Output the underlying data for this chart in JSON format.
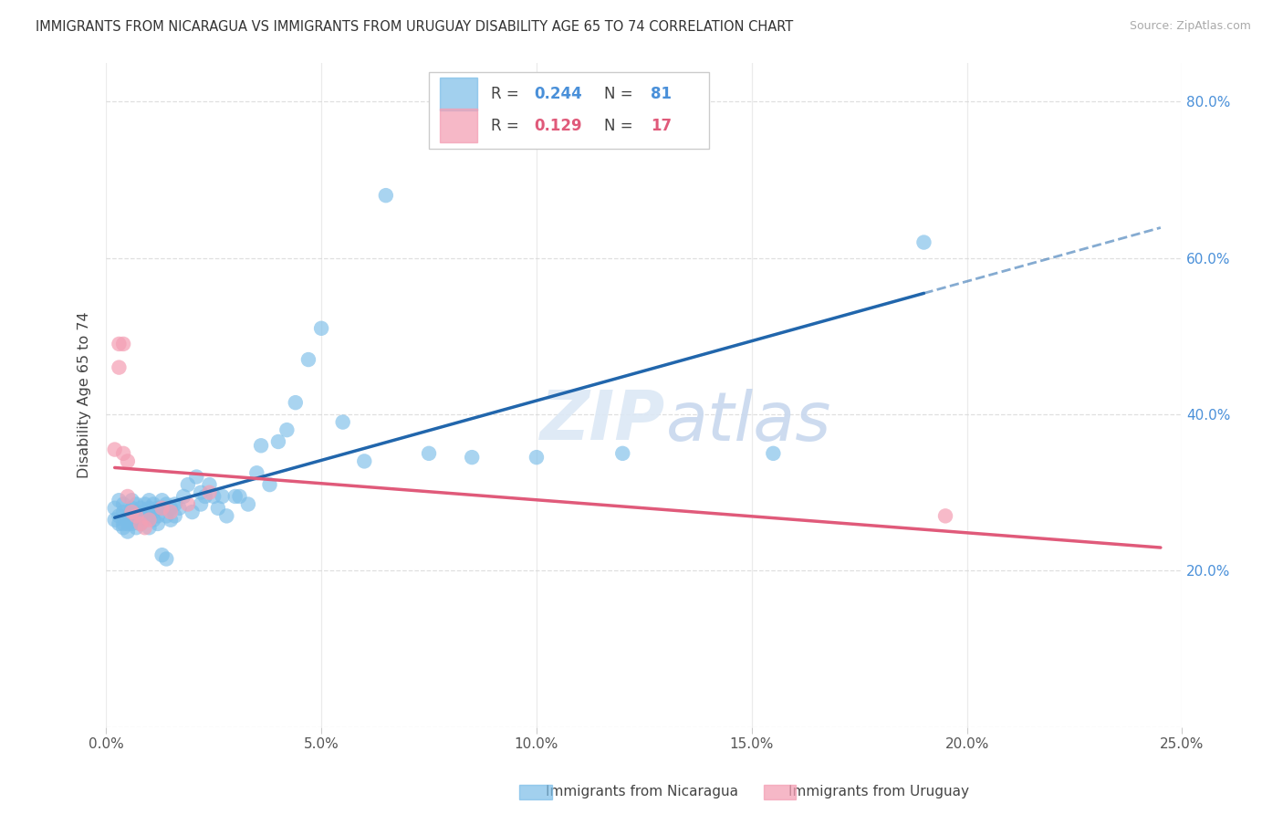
{
  "title": "IMMIGRANTS FROM NICARAGUA VS IMMIGRANTS FROM URUGUAY DISABILITY AGE 65 TO 74 CORRELATION CHART",
  "source": "Source: ZipAtlas.com",
  "ylabel": "Disability Age 65 to 74",
  "xlim": [
    0.0,
    0.25
  ],
  "ylim": [
    0.0,
    0.85
  ],
  "xticks": [
    0.0,
    0.05,
    0.1,
    0.15,
    0.2,
    0.25
  ],
  "xtick_labels": [
    "0.0%",
    "5.0%",
    "10.0%",
    "15.0%",
    "20.0%",
    "25.0%"
  ],
  "yticks": [
    0.0,
    0.2,
    0.4,
    0.6,
    0.8
  ],
  "ytick_labels": [
    "",
    "20.0%",
    "40.0%",
    "60.0%",
    "80.0%"
  ],
  "nicaragua_color": "#7bbde8",
  "uruguay_color": "#f4a0b5",
  "line_nicaragua_color": "#2166ac",
  "line_uruguay_color": "#e05a7a",
  "R_nicaragua": 0.244,
  "N_nicaragua": 81,
  "R_uruguay": 0.129,
  "N_uruguay": 17,
  "background_color": "#ffffff",
  "grid_color": "#d8d8d8",
  "watermark": "ZIPatlas",
  "nicaragua_x": [
    0.002,
    0.002,
    0.003,
    0.003,
    0.003,
    0.004,
    0.004,
    0.004,
    0.004,
    0.005,
    0.005,
    0.005,
    0.005,
    0.005,
    0.006,
    0.006,
    0.006,
    0.006,
    0.007,
    0.007,
    0.007,
    0.007,
    0.008,
    0.008,
    0.008,
    0.009,
    0.009,
    0.009,
    0.01,
    0.01,
    0.01,
    0.01,
    0.011,
    0.011,
    0.011,
    0.012,
    0.012,
    0.012,
    0.013,
    0.013,
    0.013,
    0.014,
    0.014,
    0.014,
    0.015,
    0.015,
    0.016,
    0.016,
    0.017,
    0.018,
    0.019,
    0.02,
    0.021,
    0.022,
    0.022,
    0.023,
    0.024,
    0.025,
    0.026,
    0.027,
    0.028,
    0.03,
    0.031,
    0.033,
    0.035,
    0.036,
    0.038,
    0.04,
    0.042,
    0.044,
    0.047,
    0.05,
    0.055,
    0.06,
    0.065,
    0.075,
    0.085,
    0.1,
    0.12,
    0.155,
    0.19
  ],
  "nicaragua_y": [
    0.28,
    0.265,
    0.29,
    0.27,
    0.26,
    0.275,
    0.26,
    0.285,
    0.255,
    0.275,
    0.265,
    0.27,
    0.26,
    0.25,
    0.29,
    0.28,
    0.27,
    0.26,
    0.285,
    0.275,
    0.265,
    0.255,
    0.28,
    0.27,
    0.26,
    0.285,
    0.275,
    0.265,
    0.29,
    0.28,
    0.27,
    0.255,
    0.285,
    0.275,
    0.265,
    0.28,
    0.27,
    0.26,
    0.29,
    0.28,
    0.22,
    0.285,
    0.27,
    0.215,
    0.28,
    0.265,
    0.285,
    0.27,
    0.28,
    0.295,
    0.31,
    0.275,
    0.32,
    0.3,
    0.285,
    0.295,
    0.31,
    0.295,
    0.28,
    0.295,
    0.27,
    0.295,
    0.295,
    0.285,
    0.325,
    0.36,
    0.31,
    0.365,
    0.38,
    0.415,
    0.47,
    0.51,
    0.39,
    0.34,
    0.68,
    0.35,
    0.345,
    0.345,
    0.35,
    0.35,
    0.62
  ],
  "uruguay_x": [
    0.002,
    0.003,
    0.003,
    0.004,
    0.004,
    0.005,
    0.005,
    0.006,
    0.007,
    0.008,
    0.009,
    0.01,
    0.013,
    0.015,
    0.019,
    0.024,
    0.195
  ],
  "uruguay_y": [
    0.355,
    0.49,
    0.46,
    0.49,
    0.35,
    0.34,
    0.295,
    0.275,
    0.27,
    0.26,
    0.255,
    0.265,
    0.28,
    0.275,
    0.285,
    0.3,
    0.27
  ]
}
